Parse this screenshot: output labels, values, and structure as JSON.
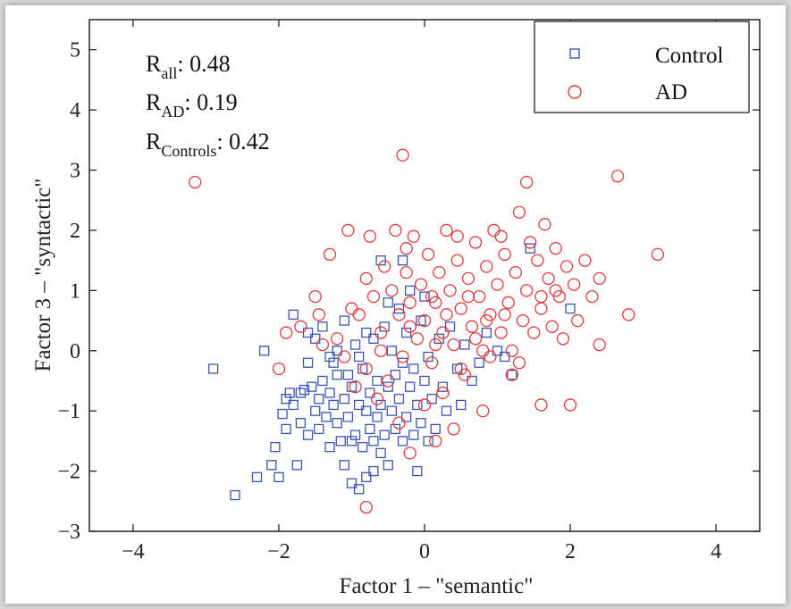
{
  "chart_data": {
    "type": "scatter",
    "xlabel": "Factor 1 – \"semantic\"",
    "ylabel": "Factor 3 – \"syntactic\"",
    "xlim": [
      -4.6,
      4.6
    ],
    "ylim": [
      -3,
      5.5
    ],
    "xticks": [
      -4,
      -2,
      0,
      2,
      4
    ],
    "yticks": [
      -3,
      -2,
      -1,
      0,
      1,
      2,
      3,
      4,
      5
    ],
    "xtick_labels": [
      "−4",
      "−2",
      "0",
      "2",
      "4"
    ],
    "ytick_labels": [
      "−3",
      "−2",
      "−1",
      "0",
      "1",
      "2",
      "3",
      "4",
      "5"
    ],
    "grid": false,
    "legend_position": "top-right",
    "annotations": [
      {
        "base": "R",
        "sub": "all",
        "text": ": 0.48"
      },
      {
        "base": "R",
        "sub": "AD",
        "text": ": 0.19"
      },
      {
        "base": "R",
        "sub": "Controls",
        "text": ": 0.42"
      }
    ],
    "series": [
      {
        "name": "Control",
        "marker": "square",
        "color": "#3a55b4",
        "points": [
          [
            -2.9,
            -0.3
          ],
          [
            -2.6,
            -2.4
          ],
          [
            -2.3,
            -2.1
          ],
          [
            -2.2,
            0.0
          ],
          [
            -2.1,
            -1.9
          ],
          [
            -2.05,
            -1.6
          ],
          [
            -2.0,
            -2.1
          ],
          [
            -1.95,
            -1.05
          ],
          [
            -1.9,
            -1.3
          ],
          [
            -1.85,
            -0.7
          ],
          [
            -1.8,
            0.6
          ],
          [
            -1.8,
            -0.9
          ],
          [
            -1.75,
            -1.9
          ],
          [
            -1.7,
            -0.7
          ],
          [
            -1.7,
            -1.2
          ],
          [
            -1.65,
            -0.65
          ],
          [
            -1.6,
            0.3
          ],
          [
            -1.6,
            -1.4
          ],
          [
            -1.55,
            -0.6
          ],
          [
            -1.5,
            -1.0
          ],
          [
            -1.5,
            0.2
          ],
          [
            -1.45,
            -0.8
          ],
          [
            -1.45,
            -1.3
          ],
          [
            -1.4,
            0.4
          ],
          [
            -1.4,
            -0.5
          ],
          [
            -1.35,
            -1.1
          ],
          [
            -1.3,
            -0.7
          ],
          [
            -1.3,
            -1.6
          ],
          [
            -1.25,
            -0.2
          ],
          [
            -1.25,
            -0.9
          ],
          [
            -1.2,
            -1.2
          ],
          [
            -1.2,
            0.0
          ],
          [
            -1.15,
            -1.5
          ],
          [
            -1.1,
            -0.8
          ],
          [
            -1.1,
            -1.9
          ],
          [
            -1.05,
            -0.4
          ],
          [
            -1.05,
            -1.1
          ],
          [
            -1.0,
            -2.2
          ],
          [
            -1.0,
            -0.6
          ],
          [
            -0.95,
            -1.4
          ],
          [
            -0.95,
            0.1
          ],
          [
            -0.9,
            -0.9
          ],
          [
            -0.9,
            -2.3
          ],
          [
            -0.85,
            -1.6
          ],
          [
            -0.85,
            -0.3
          ],
          [
            -0.8,
            -1.0
          ],
          [
            -0.8,
            -2.1
          ],
          [
            -0.75,
            -0.7
          ],
          [
            -0.75,
            -1.3
          ],
          [
            -0.7,
            -2.0
          ],
          [
            -0.7,
            0.2
          ],
          [
            -0.65,
            -1.1
          ],
          [
            -0.65,
            -0.5
          ],
          [
            -0.6,
            -1.7
          ],
          [
            -0.6,
            -0.9
          ],
          [
            -0.55,
            0.4
          ],
          [
            -0.55,
            -1.4
          ],
          [
            -0.5,
            -0.6
          ],
          [
            -0.5,
            -1.9
          ],
          [
            -0.45,
            -1.0
          ],
          [
            -0.45,
            0.0
          ],
          [
            -0.4,
            -1.3
          ],
          [
            -0.4,
            -0.4
          ],
          [
            -0.35,
            -0.8
          ],
          [
            -0.35,
            0.7
          ],
          [
            -0.3,
            -1.5
          ],
          [
            -0.3,
            -0.2
          ],
          [
            -0.25,
            -1.1
          ],
          [
            -0.25,
            0.3
          ],
          [
            -0.2,
            -0.6
          ],
          [
            -0.2,
            1.0
          ],
          [
            -0.15,
            -1.4
          ],
          [
            -0.15,
            -0.3
          ],
          [
            -0.1,
            -2.0
          ],
          [
            -0.1,
            -0.9
          ],
          [
            -0.05,
            0.5
          ],
          [
            -0.05,
            -1.2
          ],
          [
            0.0,
            -0.5
          ],
          [
            0.0,
            0.9
          ],
          [
            0.05,
            -1.5
          ],
          [
            0.05,
            -0.1
          ],
          [
            0.1,
            -0.8
          ],
          [
            0.15,
            -1.3
          ],
          [
            0.2,
            0.2
          ],
          [
            0.25,
            -0.6
          ],
          [
            0.3,
            -1.0
          ],
          [
            0.35,
            0.4
          ],
          [
            0.45,
            -0.3
          ],
          [
            0.5,
            -0.9
          ],
          [
            0.55,
            0.1
          ],
          [
            0.65,
            -0.5
          ],
          [
            0.75,
            -0.2
          ],
          [
            0.85,
            0.3
          ],
          [
            1.0,
            0.0
          ],
          [
            1.1,
            -0.1
          ],
          [
            1.2,
            -0.4
          ],
          [
            1.45,
            1.7
          ],
          [
            2.0,
            0.7
          ],
          [
            -0.6,
            1.5
          ],
          [
            -0.3,
            1.5
          ],
          [
            -1.3,
            -0.1
          ],
          [
            -1.9,
            -0.8
          ],
          [
            -1.6,
            -0.2
          ],
          [
            -0.8,
            0.3
          ],
          [
            -1.1,
            0.5
          ],
          [
            -0.5,
            0.8
          ],
          [
            -0.9,
            -0.1
          ],
          [
            -1.2,
            -0.4
          ],
          [
            -1.0,
            -1.5
          ],
          [
            -0.7,
            -1.5
          ]
        ]
      },
      {
        "name": "AD",
        "marker": "circle",
        "color": "#e53a3a",
        "points": [
          [
            -3.15,
            2.8
          ],
          [
            -0.3,
            3.25
          ],
          [
            1.4,
            2.8
          ],
          [
            2.65,
            2.9
          ],
          [
            3.2,
            1.6
          ],
          [
            2.8,
            0.6
          ],
          [
            2.4,
            0.1
          ],
          [
            2.0,
            -0.9
          ],
          [
            1.6,
            -0.9
          ],
          [
            1.2,
            -0.4
          ],
          [
            0.8,
            -1.0
          ],
          [
            0.4,
            -1.3
          ],
          [
            0.15,
            -1.5
          ],
          [
            -0.2,
            -1.7
          ],
          [
            -0.8,
            -2.6
          ],
          [
            -2.0,
            -0.3
          ],
          [
            -1.9,
            0.3
          ],
          [
            -1.7,
            0.4
          ],
          [
            -1.5,
            0.9
          ],
          [
            -1.45,
            0.6
          ],
          [
            -1.3,
            1.6
          ],
          [
            -1.2,
            0.2
          ],
          [
            -1.05,
            2.0
          ],
          [
            -0.9,
            0.6
          ],
          [
            -0.8,
            -0.3
          ],
          [
            -0.75,
            1.9
          ],
          [
            -0.7,
            0.9
          ],
          [
            -0.6,
            0.3
          ],
          [
            -0.55,
            1.4
          ],
          [
            -0.5,
            -0.5
          ],
          [
            -0.45,
            1.0
          ],
          [
            -0.4,
            2.0
          ],
          [
            -0.35,
            0.6
          ],
          [
            -0.3,
            -0.1
          ],
          [
            -0.25,
            1.3
          ],
          [
            -0.2,
            0.8
          ],
          [
            -0.15,
            1.9
          ],
          [
            -0.1,
            0.2
          ],
          [
            -0.05,
            1.1
          ],
          [
            0.0,
            0.5
          ],
          [
            0.05,
            1.6
          ],
          [
            0.1,
            -0.2
          ],
          [
            0.15,
            0.8
          ],
          [
            0.2,
            1.3
          ],
          [
            0.25,
            0.3
          ],
          [
            0.3,
            2.0
          ],
          [
            0.35,
            1.0
          ],
          [
            0.4,
            0.1
          ],
          [
            0.45,
            1.5
          ],
          [
            0.5,
            0.7
          ],
          [
            0.55,
            -0.4
          ],
          [
            0.6,
            1.2
          ],
          [
            0.65,
            0.4
          ],
          [
            0.7,
            1.8
          ],
          [
            0.75,
            0.9
          ],
          [
            0.8,
            0.0
          ],
          [
            0.85,
            1.4
          ],
          [
            0.9,
            0.6
          ],
          [
            0.95,
            2.0
          ],
          [
            1.0,
            1.1
          ],
          [
            1.05,
            0.3
          ],
          [
            1.1,
            1.6
          ],
          [
            1.15,
            0.8
          ],
          [
            1.2,
            0.0
          ],
          [
            1.25,
            1.3
          ],
          [
            1.3,
            2.3
          ],
          [
            1.35,
            0.5
          ],
          [
            1.4,
            1.0
          ],
          [
            1.45,
            1.8
          ],
          [
            1.5,
            0.3
          ],
          [
            1.55,
            1.5
          ],
          [
            1.6,
            0.7
          ],
          [
            1.65,
            2.1
          ],
          [
            1.7,
            1.2
          ],
          [
            1.75,
            0.4
          ],
          [
            1.8,
            1.7
          ],
          [
            1.85,
            0.9
          ],
          [
            1.9,
            0.2
          ],
          [
            1.95,
            1.4
          ],
          [
            2.05,
            1.1
          ],
          [
            2.1,
            0.5
          ],
          [
            2.2,
            1.5
          ],
          [
            2.3,
            0.9
          ],
          [
            2.4,
            1.2
          ],
          [
            -0.95,
            -0.6
          ],
          [
            -1.1,
            -0.1
          ],
          [
            -0.65,
            -0.8
          ],
          [
            -0.35,
            -1.2
          ],
          [
            0.0,
            -0.9
          ],
          [
            0.25,
            -0.7
          ],
          [
            0.5,
            -0.3
          ],
          [
            0.7,
            0.2
          ],
          [
            0.9,
            -0.1
          ],
          [
            1.1,
            0.6
          ],
          [
            -0.6,
            0.0
          ],
          [
            -0.2,
            0.4
          ],
          [
            0.1,
            0.9
          ],
          [
            0.3,
            0.6
          ],
          [
            0.6,
            0.9
          ],
          [
            -0.8,
            1.2
          ],
          [
            -1.0,
            0.7
          ],
          [
            1.6,
            0.9
          ],
          [
            1.8,
            1.0
          ],
          [
            1.05,
            1.9
          ],
          [
            0.45,
            1.9
          ],
          [
            -0.25,
            1.7
          ],
          [
            -1.4,
            0.1
          ],
          [
            1.3,
            -0.2
          ],
          [
            0.85,
            0.5
          ],
          [
            0.15,
            0.1
          ]
        ]
      }
    ]
  }
}
